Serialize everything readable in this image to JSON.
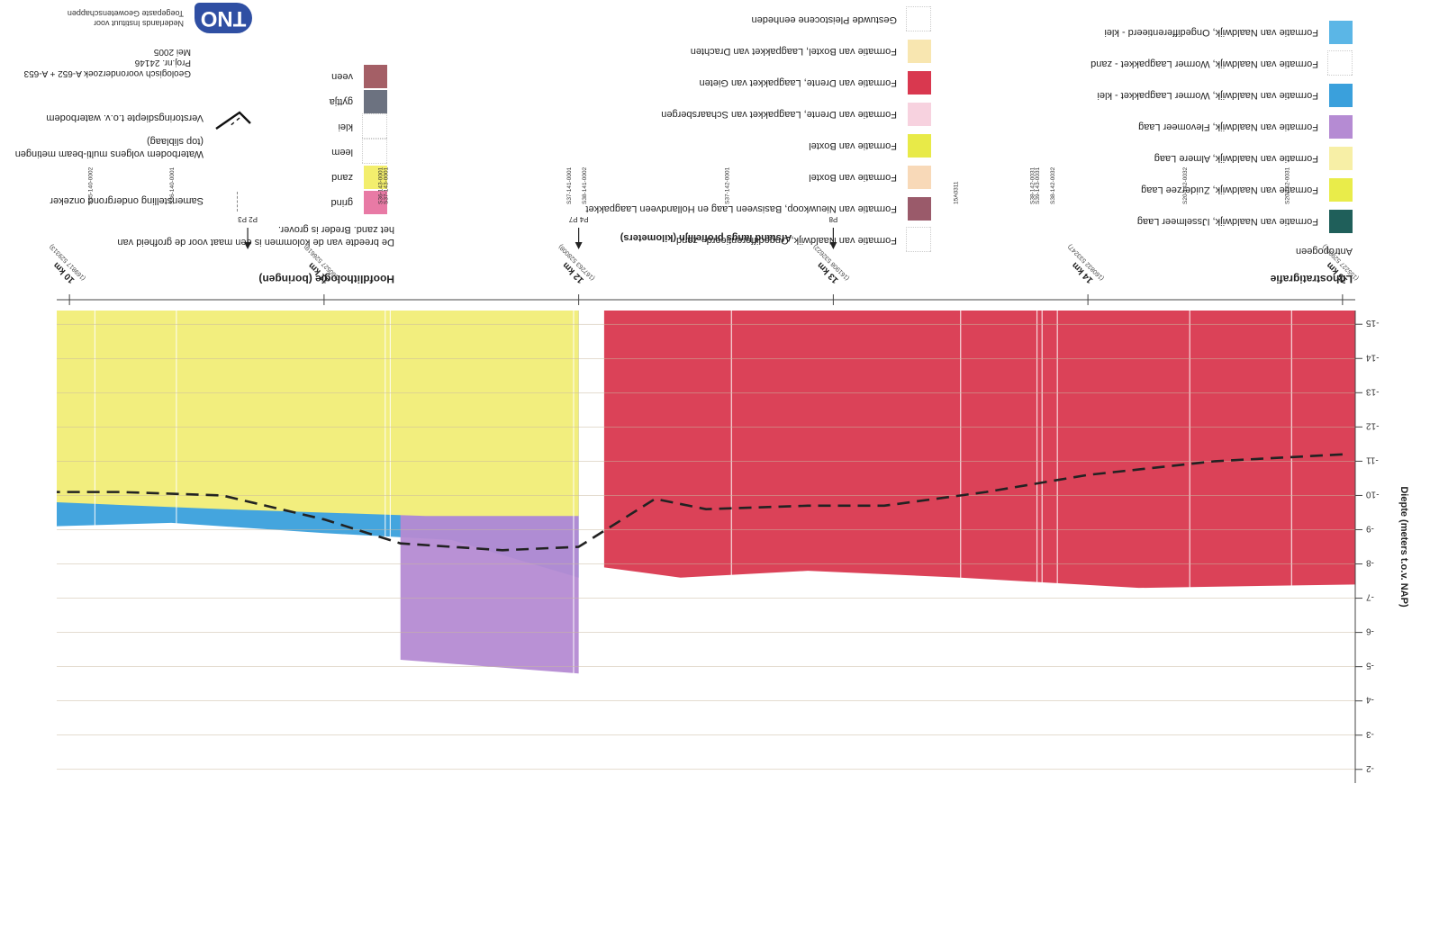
{
  "legend_litho": {
    "title": "Lithostratigrafie",
    "subtitle": "Antropogeen",
    "items": [
      {
        "label": "Formatie van Naaldwijk, IJsselmeer Laag",
        "color": "#1f5f5a"
      },
      {
        "label": "Formatie van Naaldwijk, Zuiderzee Laag",
        "color": "#e9ec4a"
      },
      {
        "label": "Formatie van Naaldwijk, Almere Laag",
        "color": "#f7efa6"
      },
      {
        "label": "Formatie van Naaldwijk, Flevomeer Laag",
        "color": "#b58bd3"
      },
      {
        "label": "Formatie van Naaldwijk, Wormer Laagpakket - klei",
        "color": "#3aa0dc"
      },
      {
        "label": "Formatie van Naaldwijk, Wormer Laagpakket - zand",
        "color": "#ffffff"
      },
      {
        "label": "Formatie van Naaldwijk, Ongedifferentieerd - klei",
        "color": "#5bb6e6"
      }
    ]
  },
  "legend_middle": {
    "items": [
      {
        "label": "Formatie van Naaldwijk, Ongedifferentieerd - zand",
        "color": "#ffffff"
      },
      {
        "label": "Formatie van Nieuwkoop, Basisveen Laag en Hollandveen Laagpakket",
        "color": "#9a5a6a"
      },
      {
        "label": "Formatie van Boxtel",
        "color": "#f8d9b8"
      },
      {
        "label": "Formatie van Boxtel",
        "color": "#e8ea48"
      },
      {
        "label": "Formatie van Drente, Laagpakket van Schaarsbergen",
        "color": "#f7d2df"
      },
      {
        "label": "Formatie van Drente, Laagpakket van Gieten",
        "color": "#d9384f"
      },
      {
        "label": "Formatie van Boxtel, Laagpakket van Drachten",
        "color": "#f8e6b0"
      },
      {
        "label": "Gestuwde Pleistocene eenheden",
        "color": "#ffffff"
      }
    ]
  },
  "legend_hoofd": {
    "title": "Hoofdlithologie (boringen)",
    "note1": "De breedte van de kolommen is een maat voor de grofheid van",
    "note2": "het zand. Breder is grover.",
    "items": [
      {
        "label": "grind",
        "color": "#e87aa5"
      },
      {
        "label": "zand",
        "color": "#f3ee6d"
      },
      {
        "label": "leem",
        "color": "#ffffff"
      },
      {
        "label": "klei",
        "color": "#ffffff"
      },
      {
        "label": "gyttja",
        "color": "#6c7280"
      },
      {
        "label": "veen",
        "color": "#a45f66"
      }
    ]
  },
  "legend_symbols": {
    "items": [
      "Samenstelling ondergrond onzeker",
      "Waterbodem volgens multi-beam metingen",
      "(top sliblaag)",
      "Verstoringsdiepte t.o.v. waterbodem"
    ]
  },
  "title_block": {
    "line1": "Geologisch vooronderzoek A-652 + A-653",
    "line2": "Proj.nr. 24146",
    "line3": "Mei 2005",
    "org1": "Nederlands Instituut voor",
    "org2": "Toegepaste Geowetenschappen",
    "logo": "TNO"
  },
  "chart_data": {
    "type": "area",
    "title": "",
    "ylabel": "Diepte (meters t.o.v. NAP)",
    "xlabel": "Afstand langs profiellijn (kilometers)",
    "x_reversed": true,
    "y_ticks": [
      "-2",
      "-3",
      "-4",
      "-5",
      "-6",
      "-7",
      "-8",
      "-9",
      "-10",
      "-11",
      "-12",
      "-13",
      "-14",
      "-15"
    ],
    "y_tick_values": [
      -2,
      -3,
      -4,
      -5,
      -6,
      -7,
      -8,
      -9,
      -10,
      -11,
      -12,
      -13,
      -14,
      -15
    ],
    "ylim": [
      -15.4,
      -1.6
    ],
    "xlim": [
      15.05,
      9.95
    ],
    "x_ticks": [
      {
        "label": "15 km",
        "sub": "(155227 529001)",
        "value": 15
      },
      {
        "label": "14 km",
        "sub": "(160832 533247)",
        "value": 14
      },
      {
        "label": "13 km",
        "sub": "(161908 532622)",
        "value": 13
      },
      {
        "label": "12 km",
        "sub": "(167263 528008)",
        "value": 12
      },
      {
        "label": "11 km",
        "sub": "(160527 526619)",
        "value": 11
      },
      {
        "label": "10 km",
        "sub": "(169817 529313)",
        "value": 10
      }
    ],
    "markers": [
      {
        "label": "P8",
        "x": 13.0
      },
      {
        "label": "P4 P7",
        "x": 12.0
      },
      {
        "label": "P2 P3",
        "x": 10.7
      }
    ],
    "boreholes": [
      {
        "label": "S20-142-0031",
        "x": 14.8
      },
      {
        "label": "S20-142-0032",
        "x": 14.4
      },
      {
        "label": "S38-142-0032",
        "x": 13.88
      },
      {
        "label": "S39-143-0031",
        "x": 13.82
      },
      {
        "label": "S38-142-0031",
        "x": 13.8
      },
      {
        "label": "15A0311",
        "x": 13.5
      },
      {
        "label": "S37-142-0001",
        "x": 12.6
      },
      {
        "label": "S38-141-0002",
        "x": 12.04
      },
      {
        "label": "S37-141-0001",
        "x": 11.98
      },
      {
        "label": "S37-143-0001",
        "x": 11.26
      },
      {
        "label": "S36-143-0001",
        "x": 11.24
      },
      {
        "label": "S36-140-0001",
        "x": 10.42
      },
      {
        "label": "S35-140-0002",
        "x": 10.1
      }
    ],
    "series": [
      {
        "name": "Formatie van Boxtel",
        "color": "#f2c49a",
        "top": [
          [
            15.05,
            -15.4
          ],
          [
            12.0,
            -15.4
          ],
          [
            12.0,
            -9.4
          ],
          [
            11.4,
            -9.4
          ],
          [
            10.6,
            -9.6
          ],
          [
            9.95,
            -9.8
          ]
        ]
      },
      {
        "name": "Formatie van Drente, Laagpakket van Gieten",
        "color": "#d9384f",
        "top": [
          [
            15.05,
            -7.4
          ],
          [
            14.2,
            -7.3
          ],
          [
            13.5,
            -7.6
          ],
          [
            12.9,
            -7.8
          ],
          [
            12.4,
            -7.6
          ],
          [
            12.1,
            -7.9
          ]
        ]
      },
      {
        "name": "Formatie van Naaldwijk, Wormer Laagpakket - klei",
        "color": "#3aa0dc",
        "top": [
          [
            12.0,
            -7.6
          ],
          [
            11.5,
            -8.7
          ],
          [
            11.0,
            -8.9
          ],
          [
            10.4,
            -9.2
          ],
          [
            9.95,
            -9.1
          ]
        ]
      },
      {
        "name": "Formatie van Naaldwijk, Flevomeer Laag",
        "color": "#b58bd3",
        "top": [
          [
            12.0,
            -4.8
          ],
          [
            11.3,
            -5.2
          ]
        ]
      }
    ],
    "line_series": [
      {
        "name": "Verstoringsdiepte t.o.v. waterbodem",
        "style": "dashed",
        "points": [
          [
            15.0,
            -11.2
          ],
          [
            14.5,
            -11.0
          ],
          [
            14.0,
            -10.6
          ],
          [
            13.6,
            -10.1
          ],
          [
            13.2,
            -9.7
          ],
          [
            12.9,
            -9.7
          ],
          [
            12.5,
            -9.6
          ],
          [
            12.3,
            -9.9
          ],
          [
            12.0,
            -8.5
          ],
          [
            11.7,
            -8.4
          ],
          [
            11.3,
            -8.6
          ],
          [
            11.0,
            -9.3
          ],
          [
            10.6,
            -10.0
          ],
          [
            10.2,
            -10.1
          ],
          [
            9.95,
            -10.1
          ]
        ]
      }
    ]
  }
}
